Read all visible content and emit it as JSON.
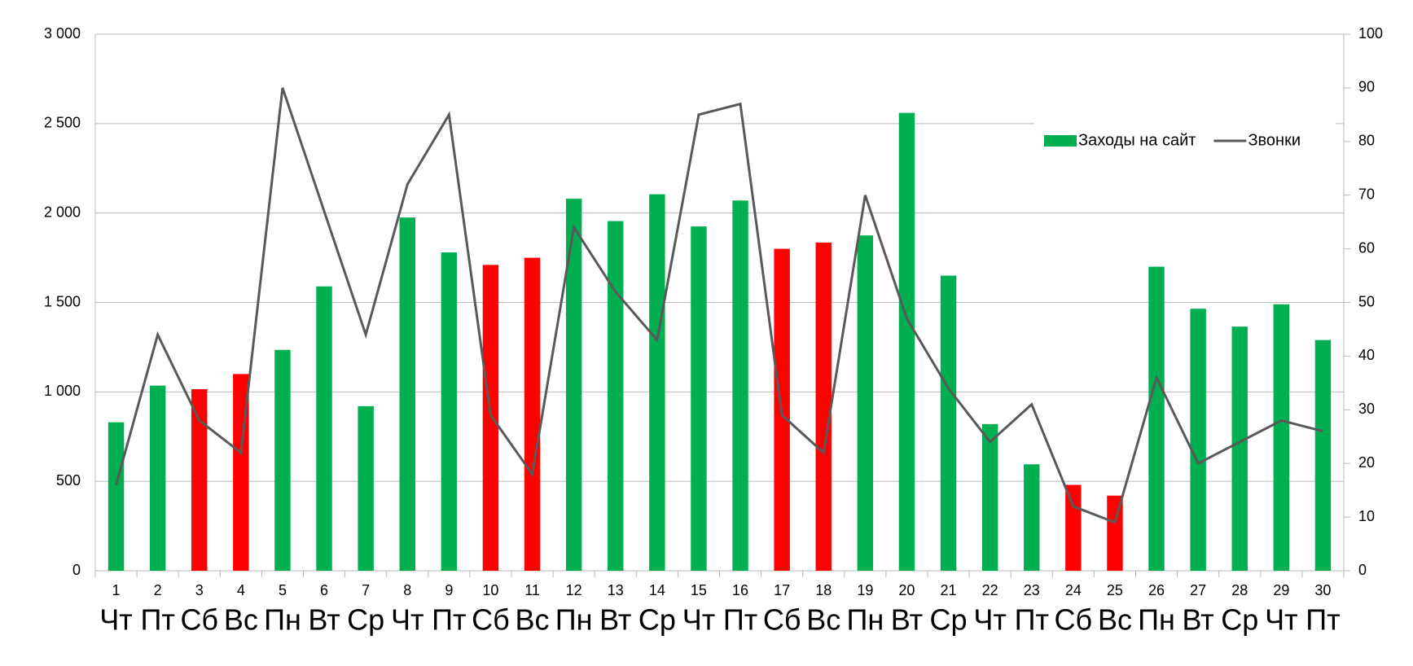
{
  "chart_data": {
    "type": "bar-line",
    "categories": [
      "1",
      "2",
      "3",
      "4",
      "5",
      "6",
      "7",
      "8",
      "9",
      "10",
      "11",
      "12",
      "13",
      "14",
      "15",
      "16",
      "17",
      "18",
      "19",
      "20",
      "21",
      "22",
      "23",
      "24",
      "25",
      "26",
      "27",
      "28",
      "29",
      "30"
    ],
    "weekdays": [
      "Чт",
      "Пт",
      "Сб",
      "Вс",
      "Пн",
      "Вт",
      "Ср",
      "Чт",
      "Пт",
      "Сб",
      "Вс",
      "Пн",
      "Вт",
      "Ср",
      "Чт",
      "Пт",
      "Сб",
      "Вс",
      "Пн",
      "Вт",
      "Ср",
      "Чт",
      "Пт",
      "Сб",
      "Вс",
      "Пн",
      "Вт",
      "Ср",
      "Чт",
      "Пт"
    ],
    "series": [
      {
        "name": "Заходы на сайт",
        "type": "bar",
        "color": "#00b050",
        "values": [
          830,
          1035,
          1015,
          1100,
          1235,
          1590,
          920,
          1975,
          1780,
          1710,
          1750,
          2080,
          1955,
          2105,
          1925,
          2070,
          1800,
          1835,
          1875,
          2560,
          1650,
          820,
          595,
          480,
          420,
          1700,
          1465,
          1365,
          1490,
          1290
        ],
        "point_colors": [
          "#00b050",
          "#00b050",
          "#ff0000",
          "#ff0000",
          "#00b050",
          "#00b050",
          "#00b050",
          "#00b050",
          "#00b050",
          "#ff0000",
          "#ff0000",
          "#00b050",
          "#00b050",
          "#00b050",
          "#00b050",
          "#00b050",
          "#ff0000",
          "#ff0000",
          "#00b050",
          "#00b050",
          "#00b050",
          "#00b050",
          "#00b050",
          "#ff0000",
          "#ff0000",
          "#00b050",
          "#00b050",
          "#00b050",
          "#00b050",
          "#00b050"
        ]
      },
      {
        "name": "Звонки",
        "type": "line",
        "axis": "y2",
        "color": "#595959",
        "values": [
          16,
          44,
          28,
          22,
          90,
          67,
          44,
          72,
          85,
          29,
          18,
          64,
          52,
          43,
          85,
          87,
          29,
          22,
          70,
          47,
          34,
          24,
          31,
          12,
          9,
          36,
          20,
          24,
          28,
          26
        ]
      }
    ],
    "ylim": [
      0,
      3000
    ],
    "yticks": [
      0,
      500,
      {
        "value": 1000,
        "label": "1 000"
      },
      {
        "value": 1500,
        "label": "1 500"
      },
      {
        "value": 2000,
        "label": "2 000"
      },
      {
        "value": 2500,
        "label": "2 500"
      },
      {
        "value": 3000,
        "label": "3 000"
      }
    ],
    "y2lim": [
      0,
      100
    ],
    "y2ticks": [
      0,
      10,
      20,
      30,
      40,
      50,
      60,
      70,
      80,
      90,
      100
    ],
    "grid": true,
    "legend": "upper right"
  }
}
